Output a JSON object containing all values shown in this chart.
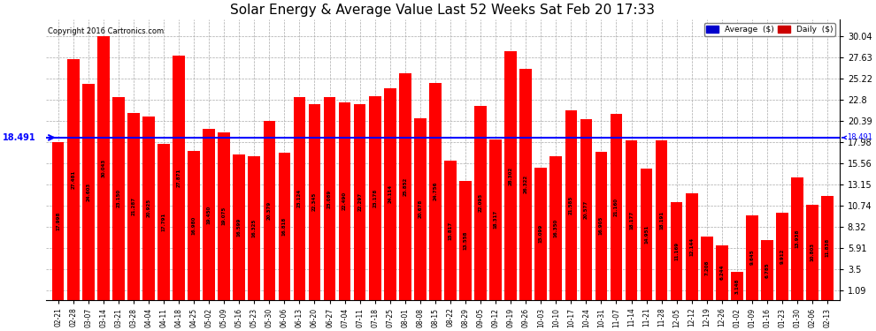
{
  "title": "Solar Energy & Average Value Last 52 Weeks Sat Feb 20 17:33",
  "copyright": "Copyright 2016 Cartronics.com",
  "average_value": 18.491,
  "average_label": "18.491",
  "bar_color": "#ff0000",
  "average_line_color": "#0000ff",
  "background_color": "#ffffff",
  "grid_color": "#aaaaaa",
  "yticks": [
    1.09,
    3.5,
    5.91,
    8.32,
    10.74,
    13.15,
    15.56,
    17.98,
    20.39,
    22.8,
    25.22,
    27.63,
    30.04
  ],
  "legend_avg_color": "#0000cc",
  "legend_daily_color": "#cc0000",
  "dates": [
    "02-21",
    "02-28",
    "03-07",
    "03-14",
    "03-21",
    "03-28",
    "04-04",
    "04-11",
    "04-18",
    "04-25",
    "05-02",
    "05-09",
    "05-16",
    "05-23",
    "05-30",
    "06-06",
    "06-13",
    "06-20",
    "06-27",
    "07-04",
    "07-11",
    "07-18",
    "07-25",
    "08-01",
    "08-08",
    "08-15",
    "08-22",
    "08-29",
    "09-05",
    "09-12",
    "09-19",
    "09-26",
    "10-03",
    "10-10",
    "10-17",
    "10-24",
    "10-31",
    "11-07",
    "11-14",
    "11-21",
    "11-28",
    "12-05",
    "12-12",
    "12-19",
    "12-26",
    "01-02",
    "01-09",
    "01-16",
    "01-23",
    "01-30",
    "02-06",
    "02-13"
  ],
  "values": [
    17.998,
    27.481,
    24.603,
    30.043,
    23.15,
    21.287,
    20.925,
    17.791,
    27.871,
    16.98,
    19.45,
    19.075,
    16.599,
    16.325,
    20.379,
    16.818,
    23.124,
    22.345,
    23.089,
    22.49,
    22.297,
    23.178,
    24.114,
    25.852,
    20.678,
    24.756,
    15.817,
    13.558,
    22.095,
    18.317,
    28.302,
    26.322,
    15.099,
    16.35,
    21.585,
    20.577,
    16.905,
    21.16,
    18.177,
    14.951,
    18.191,
    11.169,
    12.144,
    7.208,
    6.244,
    3.148,
    9.645,
    6.785,
    9.912,
    13.938,
    10.803,
    11.838
  ]
}
